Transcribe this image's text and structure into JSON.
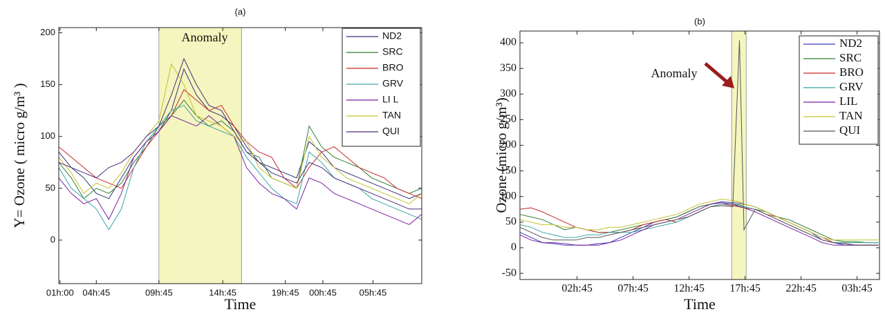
{
  "chart_data": [
    {
      "type": "line",
      "title": "(a)",
      "x_label": "Time",
      "y_label": "Y= Ozone ( micro g/m³ )",
      "annotation": "Anomaly",
      "anomaly_range": [
        8.0,
        14.6
      ],
      "legend": "upper right",
      "x": [
        0,
        1,
        2,
        3,
        4,
        5,
        6,
        7,
        8,
        9,
        10,
        11,
        12,
        13,
        14,
        15,
        16,
        17,
        18,
        19,
        20,
        21,
        22,
        23,
        24,
        25,
        26,
        27,
        28,
        29
      ],
      "xlim": [
        0,
        29
      ],
      "xticks": [
        {
          "value": 0.1,
          "label": "01h:00"
        },
        {
          "value": 3.0,
          "label": "04h:45"
        },
        {
          "value": 8.0,
          "label": "09h:45"
        },
        {
          "value": 13.1,
          "label": "14h:45"
        },
        {
          "value": 18.1,
          "label": "19h:45"
        },
        {
          "value": 21.1,
          "label": "00h:45"
        },
        {
          "value": 25.1,
          "label": "05h:45"
        }
      ],
      "ylim": [
        -42,
        205
      ],
      "yticks": [
        0,
        50,
        100,
        150,
        200
      ],
      "series": [
        {
          "name": "ND2",
          "color": "#30307a",
          "values": [
            85,
            70,
            60,
            45,
            40,
            60,
            80,
            95,
            105,
            125,
            165,
            140,
            125,
            120,
            110,
            90,
            75,
            70,
            65,
            60,
            95,
            85,
            70,
            65,
            60,
            55,
            50,
            45,
            40,
            45
          ]
        },
        {
          "name": "SRC",
          "color": "#2e7d32",
          "values": [
            75,
            60,
            40,
            50,
            45,
            55,
            75,
            90,
            110,
            120,
            135,
            120,
            110,
            115,
            105,
            85,
            80,
            60,
            55,
            50,
            110,
            90,
            80,
            75,
            70,
            60,
            55,
            50,
            45,
            50
          ]
        },
        {
          "name": "BRO",
          "color": "#c62828",
          "values": [
            90,
            80,
            70,
            60,
            55,
            50,
            70,
            90,
            105,
            120,
            145,
            135,
            125,
            130,
            110,
            95,
            85,
            80,
            60,
            50,
            70,
            85,
            90,
            80,
            70,
            65,
            60,
            50,
            45,
            40
          ]
        },
        {
          "name": "GRV",
          "color": "#3aa5a5",
          "values": [
            70,
            50,
            40,
            30,
            10,
            30,
            70,
            95,
            110,
            125,
            130,
            115,
            110,
            105,
            100,
            80,
            65,
            50,
            40,
            35,
            85,
            75,
            60,
            55,
            50,
            40,
            35,
            30,
            25,
            20
          ]
        },
        {
          "name": "LI L",
          "color": "#7b1fa2",
          "values": [
            60,
            45,
            35,
            40,
            20,
            45,
            80,
            95,
            105,
            120,
            115,
            110,
            120,
            110,
            100,
            70,
            55,
            45,
            40,
            30,
            60,
            55,
            45,
            40,
            35,
            30,
            25,
            20,
            15,
            25
          ]
        },
        {
          "name": "TAN",
          "color": "#c2c22e",
          "values": [
            80,
            65,
            45,
            55,
            50,
            65,
            85,
            100,
            115,
            170,
            150,
            120,
            115,
            110,
            100,
            95,
            70,
            60,
            55,
            50,
            100,
            80,
            70,
            60,
            55,
            50,
            45,
            40,
            35,
            45
          ]
        },
        {
          "name": "QUI",
          "color": "#4a2a7a",
          "values": [
            75,
            70,
            65,
            60,
            70,
            75,
            85,
            100,
            110,
            140,
            175,
            150,
            130,
            125,
            105,
            85,
            75,
            65,
            60,
            55,
            75,
            70,
            60,
            55,
            50,
            45,
            40,
            35,
            30,
            30
          ]
        }
      ]
    },
    {
      "type": "line",
      "title": "(b)",
      "x_label": "Time",
      "y_label": "Ozone (micro g/m³)",
      "annotation": "Anomaly",
      "anomaly_range": [
        18.9,
        20.2
      ],
      "legend": "upper right",
      "x": [
        0,
        1,
        2,
        3,
        4,
        5,
        6,
        7,
        8,
        9,
        10,
        11,
        12,
        13,
        14,
        15,
        16,
        17,
        18,
        19,
        19.6,
        20,
        21,
        22,
        23,
        24,
        25,
        26,
        27,
        28,
        29,
        30,
        31,
        32
      ],
      "xlim": [
        0,
        32.1
      ],
      "xticks": [
        {
          "value": 5.1,
          "label": "02h:45"
        },
        {
          "value": 10.1,
          "label": "07h:45"
        },
        {
          "value": 15.1,
          "label": "12h:45"
        },
        {
          "value": 20.1,
          "label": "17h:45"
        },
        {
          "value": 25.1,
          "label": "22h:45"
        },
        {
          "value": 30.1,
          "label": "03h:45"
        }
      ],
      "ylim": [
        -62,
        423
      ],
      "yticks": [
        -50,
        0,
        50,
        100,
        150,
        200,
        250,
        300,
        350,
        400
      ],
      "series": [
        {
          "name": "ND2",
          "color": "#3a3ab8",
          "values": [
            30,
            20,
            10,
            8,
            5,
            5,
            5,
            8,
            10,
            20,
            30,
            40,
            50,
            55,
            60,
            70,
            80,
            85,
            90,
            88,
            87,
            85,
            80,
            70,
            60,
            50,
            40,
            30,
            15,
            10,
            5,
            5,
            5,
            5
          ]
        },
        {
          "name": "SRC",
          "color": "#2e7d32",
          "values": [
            65,
            60,
            55,
            45,
            35,
            40,
            35,
            30,
            30,
            35,
            40,
            45,
            50,
            55,
            60,
            70,
            80,
            85,
            88,
            85,
            84,
            80,
            75,
            70,
            60,
            55,
            45,
            35,
            25,
            15,
            12,
            12,
            10,
            10
          ]
        },
        {
          "name": "BRO",
          "color": "#c62828",
          "values": [
            75,
            78,
            70,
            60,
            50,
            40,
            35,
            30,
            30,
            30,
            35,
            45,
            50,
            55,
            50,
            60,
            70,
            80,
            85,
            82,
            80,
            78,
            75,
            65,
            60,
            50,
            40,
            30,
            20,
            10,
            8,
            5,
            5,
            5
          ]
        },
        {
          "name": "GRV",
          "color": "#3aa5a5",
          "values": [
            45,
            40,
            30,
            25,
            20,
            20,
            25,
            25,
            30,
            30,
            30,
            35,
            40,
            45,
            50,
            60,
            70,
            80,
            85,
            85,
            82,
            80,
            75,
            65,
            55,
            45,
            35,
            25,
            15,
            10,
            10,
            10,
            10,
            10
          ]
        },
        {
          "name": "LIL",
          "color": "#7b1fa2",
          "values": [
            25,
            15,
            10,
            10,
            8,
            5,
            5,
            5,
            10,
            15,
            25,
            35,
            45,
            50,
            55,
            65,
            75,
            85,
            88,
            85,
            80,
            78,
            70,
            60,
            50,
            40,
            30,
            20,
            10,
            5,
            5,
            5,
            5,
            5
          ]
        },
        {
          "name": "TAN",
          "color": "#c2c22e",
          "values": [
            55,
            50,
            45,
            45,
            40,
            40,
            35,
            35,
            40,
            40,
            45,
            50,
            55,
            60,
            65,
            75,
            85,
            90,
            95,
            92,
            90,
            85,
            80,
            70,
            60,
            50,
            40,
            30,
            20,
            15,
            15,
            15,
            15,
            15
          ]
        },
        {
          "name": "QUI",
          "color": "#555555",
          "values": [
            40,
            30,
            20,
            15,
            15,
            15,
            20,
            20,
            25,
            30,
            35,
            40,
            45,
            50,
            55,
            60,
            70,
            80,
            82,
            80,
            405,
            35,
            75,
            65,
            55,
            45,
            35,
            25,
            15,
            10,
            8,
            5,
            5,
            5
          ]
        }
      ]
    }
  ]
}
